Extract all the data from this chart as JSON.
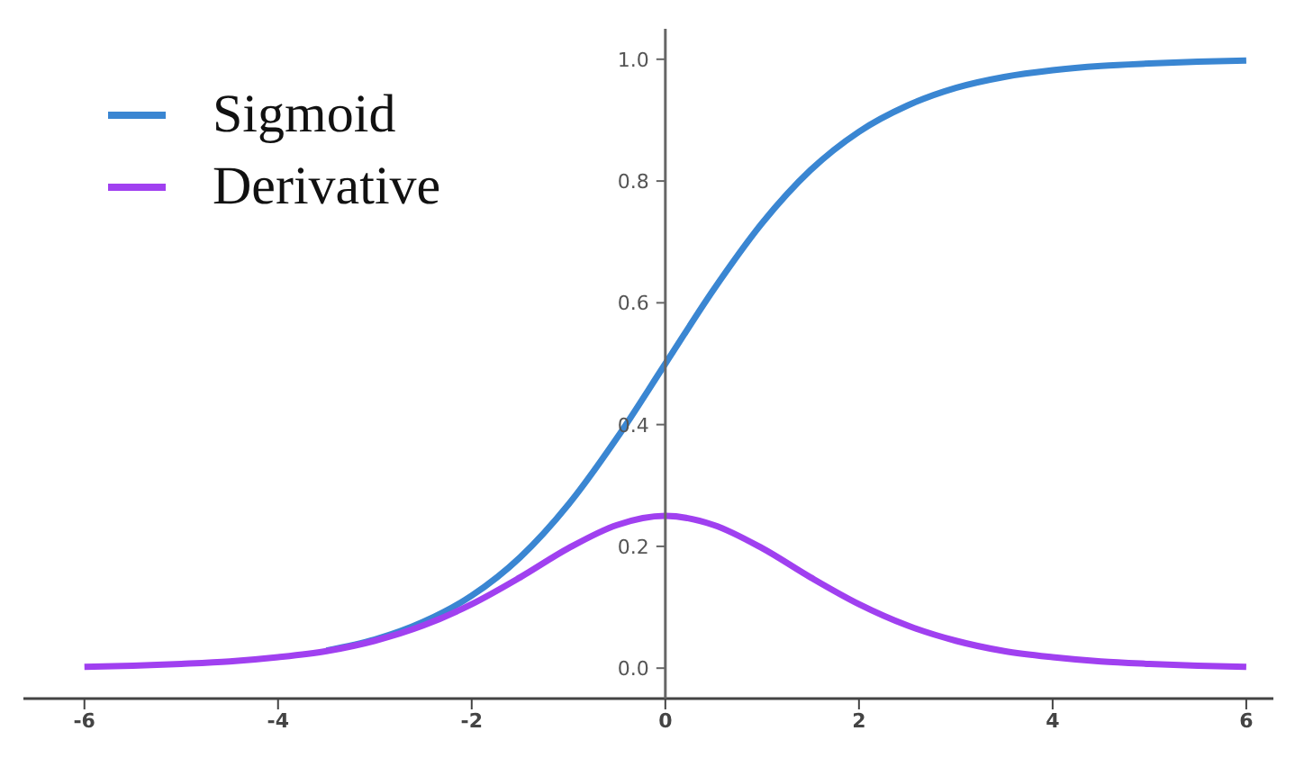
{
  "chart_data": {
    "type": "line",
    "x": [
      -6,
      -5.5,
      -5,
      -4.5,
      -4,
      -3.5,
      -3,
      -2.5,
      -2,
      -1.5,
      -1,
      -0.5,
      0,
      0.5,
      1,
      1.5,
      2,
      2.5,
      3,
      3.5,
      4,
      4.5,
      5,
      5.5,
      6
    ],
    "series": [
      {
        "name": "Sigmoid",
        "color": "#3a86d2",
        "values": [
          null,
          null,
          null,
          null,
          null,
          0.029,
          0.047,
          0.076,
          0.119,
          0.182,
          0.269,
          0.378,
          0.5,
          0.622,
          0.731,
          0.818,
          0.881,
          0.924,
          0.953,
          0.971,
          0.982,
          0.989,
          0.993,
          0.996,
          0.998
        ]
      },
      {
        "name": "Derivative",
        "color": "#a040f0",
        "values": [
          0.002,
          0.004,
          0.007,
          0.011,
          0.018,
          0.028,
          0.045,
          0.07,
          0.105,
          0.149,
          0.197,
          0.235,
          0.25,
          0.235,
          0.197,
          0.149,
          0.105,
          0.07,
          0.045,
          0.028,
          0.018,
          0.011,
          0.007,
          0.004,
          0.002
        ]
      }
    ],
    "xlim": [
      -6.63,
      6.28
    ],
    "xticks": [
      -6,
      -4,
      -2,
      0,
      2,
      4,
      6
    ],
    "ylim": [
      -0.05,
      1.05
    ],
    "yticks": [
      {
        "value": 0,
        "label": "0.0"
      },
      0.2,
      0.4,
      0.6,
      0.8,
      {
        "value": 1,
        "label": "1.0"
      }
    ],
    "legend": "top left",
    "marker": "none",
    "line_style": "solid"
  }
}
